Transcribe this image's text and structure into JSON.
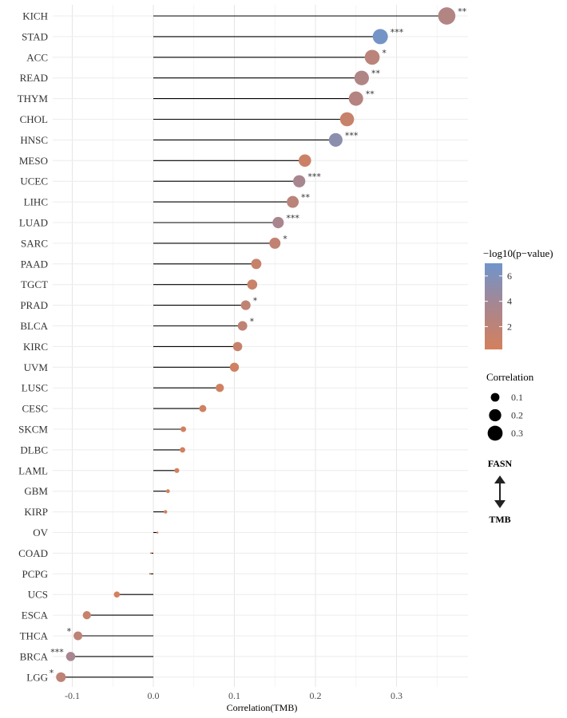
{
  "chart_data": {
    "type": "scatter",
    "subtype": "lollipop",
    "title": "",
    "xlabel": "Correlation(TMB)",
    "ylabel": "",
    "xlim": [
      -0.145,
      0.39
    ],
    "xticks": [
      -0.1,
      0.0,
      0.1,
      0.2,
      0.3
    ],
    "xtick_labels": [
      "-0.1",
      "0.0",
      "0.1",
      "0.2",
      "0.3"
    ],
    "baseline": 0,
    "grid": true,
    "categories": [
      "KICH",
      "STAD",
      "ACC",
      "READ",
      "THYM",
      "CHOL",
      "HNSC",
      "MESO",
      "UCEC",
      "LIHC",
      "LUAD",
      "SARC",
      "PAAD",
      "TGCT",
      "PRAD",
      "BLCA",
      "KIRC",
      "UVM",
      "LUSC",
      "CESC",
      "SKCM",
      "DLBC",
      "LAML",
      "GBM",
      "KIRP",
      "OV",
      "COAD",
      "PCPG",
      "UCS",
      "ESCA",
      "THCA",
      "BRCA",
      "LGG"
    ],
    "correlation": [
      0.362,
      0.28,
      0.27,
      0.257,
      0.25,
      0.239,
      0.225,
      0.187,
      0.18,
      0.172,
      0.154,
      0.15,
      0.127,
      0.122,
      0.114,
      0.11,
      0.104,
      0.1,
      0.082,
      0.061,
      0.037,
      0.036,
      0.029,
      0.018,
      0.015,
      0.005,
      -0.003,
      -0.004,
      -0.045,
      -0.082,
      -0.093,
      -0.102,
      -0.114
    ],
    "neg_log10_p": [
      2.8,
      6.7,
      2.2,
      3.0,
      2.6,
      1.2,
      5.3,
      0.9,
      3.6,
      2.2,
      3.5,
      1.6,
      1.2,
      1.1,
      1.8,
      1.8,
      1.2,
      0.6,
      0.6,
      0.5,
      0.4,
      0.3,
      0.3,
      0.3,
      0.3,
      0.2,
      0.2,
      0.2,
      0.2,
      1.1,
      2.0,
      3.6,
      1.9
    ],
    "significance": [
      "**",
      "***",
      "*",
      "**",
      "**",
      "",
      "***",
      "",
      "***",
      "**",
      "***",
      "*",
      "",
      "",
      "*",
      "*",
      "",
      "",
      "",
      "",
      "",
      "",
      "",
      "",
      "",
      "",
      "",
      "",
      "",
      "",
      "*",
      "***",
      "*"
    ],
    "color_legend": {
      "title": "−log10(p−value)",
      "range": [
        0.2,
        7.0
      ],
      "ticks": [
        2,
        4,
        6
      ],
      "tick_labels": [
        "2",
        "4",
        "6"
      ],
      "low_color": "#d4805c",
      "mid_color": "#a8868f",
      "high_color": "#6f95cc"
    },
    "size_legend": {
      "title": "Correlation",
      "values": [
        0.1,
        0.2,
        0.3
      ],
      "labels": [
        "0.1",
        "0.2",
        "0.3"
      ]
    },
    "annotation": {
      "top": "FASN",
      "bottom": "TMB"
    }
  }
}
